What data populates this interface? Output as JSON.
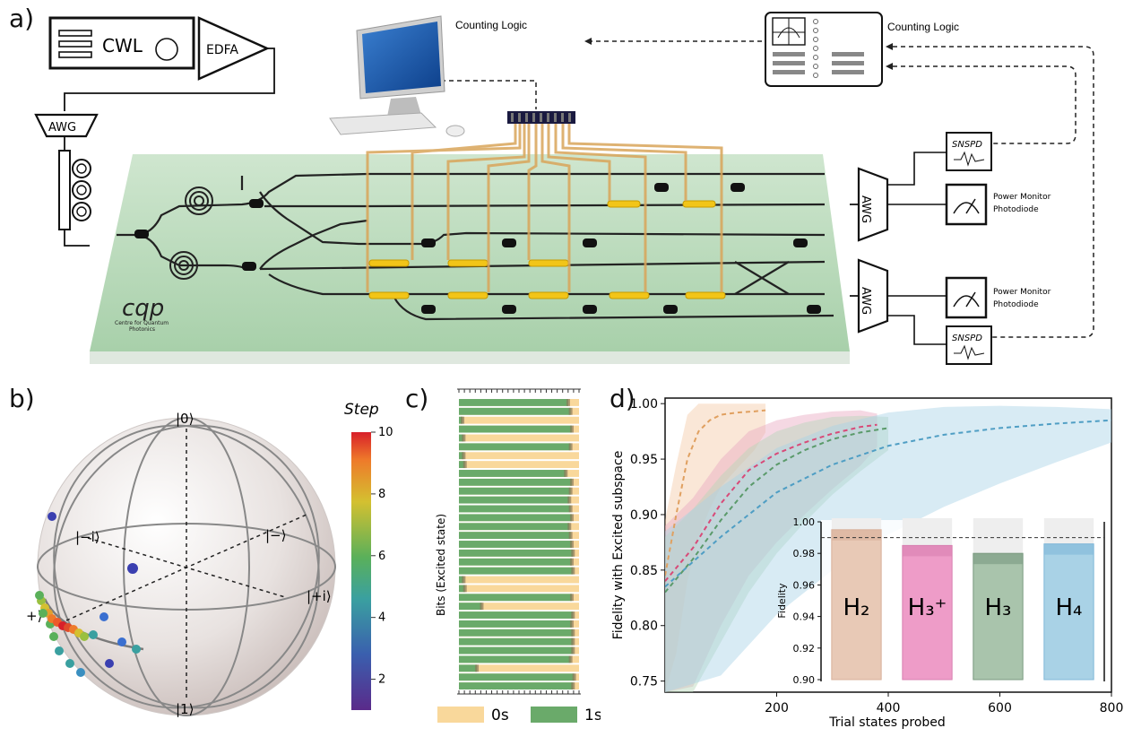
{
  "panel_labels": {
    "a": "a)",
    "b": "b)",
    "c": "c)",
    "d": "d)"
  },
  "setup": {
    "laser": "CWL",
    "amplifier": "EDFA",
    "awg_left": "AWG",
    "awg_right_1": "AWG",
    "awg_right_2": "AWG",
    "counting_logic_1": "Counting Logic",
    "counting_logic_2": "Counting Logic",
    "detector_1": "SNSPD",
    "detector_2": "SNSPD",
    "monitor_1_line1": "Power Monitor",
    "monitor_1_line2": "Photodiode",
    "monitor_2_line1": "Power Monitor",
    "monitor_2_line2": "Photodiode",
    "logo": "cqp",
    "logo_sub1": "Centre for Quantum",
    "logo_sub2": "Photonics"
  },
  "bloch": {
    "labels": {
      "zero": "|0⟩",
      "one": "|1⟩",
      "plus": "|+⟩",
      "minus": "|−⟩",
      "plus_i": "|+i⟩",
      "minus_i": "|−i⟩"
    },
    "colorbar": {
      "title": "Step",
      "ticks": [
        2,
        4,
        6,
        8,
        10
      ],
      "range": [
        1,
        10
      ]
    }
  },
  "bits_chart": {
    "ylabel": "Bits (Excited state)",
    "legend": [
      {
        "name": "0s",
        "color": "#f9d89b"
      },
      {
        "name": "1s",
        "color": "#6aaa6a"
      }
    ],
    "rows_ones_fraction": [
      0.91,
      0.93,
      0.03,
      0.94,
      0.04,
      0.93,
      0.04,
      0.05,
      0.89,
      0.94,
      0.93,
      0.92,
      0.93,
      0.94,
      0.92,
      0.93,
      0.94,
      0.95,
      0.94,
      0.95,
      0.04,
      0.05,
      0.94,
      0.19,
      0.95,
      0.94,
      0.95,
      0.95,
      0.95,
      0.93,
      0.15,
      0.96,
      0.95
    ]
  },
  "chart_data": {
    "type": "line",
    "xlabel": "Trial states probed",
    "ylabel": "Fidelity with Excited subspace",
    "xlim": [
      0,
      800
    ],
    "ylim": [
      0.74,
      1.005
    ],
    "xticks": [
      200,
      400,
      600,
      800
    ],
    "yticks": [
      0.75,
      0.8,
      0.85,
      0.9,
      0.95,
      1.0
    ],
    "series": [
      {
        "color": "#e0a060",
        "band_color": "#f4c9a6",
        "x": [
          0,
          20,
          40,
          60,
          80,
          100,
          130,
          160,
          180
        ],
        "y": [
          0.845,
          0.9,
          0.95,
          0.975,
          0.985,
          0.99,
          0.992,
          0.993,
          0.994
        ]
      },
      {
        "color": "#d84a78",
        "band_color": "#e8a8c0",
        "x": [
          0,
          50,
          100,
          150,
          200,
          250,
          300,
          350,
          380
        ],
        "y": [
          0.84,
          0.87,
          0.91,
          0.94,
          0.955,
          0.965,
          0.973,
          0.979,
          0.981
        ]
      },
      {
        "color": "#5a9a6a",
        "band_color": "#b6d6b8",
        "x": [
          0,
          50,
          100,
          150,
          200,
          250,
          300,
          350,
          400
        ],
        "y": [
          0.83,
          0.86,
          0.895,
          0.925,
          0.945,
          0.958,
          0.968,
          0.974,
          0.978
        ]
      },
      {
        "color": "#4f9ec4",
        "band_color": "#a9d2e6",
        "x": [
          0,
          100,
          200,
          300,
          400,
          500,
          600,
          700,
          800
        ],
        "y": [
          0.835,
          0.88,
          0.92,
          0.945,
          0.962,
          0.972,
          0.978,
          0.982,
          0.985
        ]
      }
    ],
    "inset": {
      "type": "bar",
      "ylabel": "Fidelity",
      "ylim": [
        0.9,
        1.0
      ],
      "yticks": [
        0.9,
        0.92,
        0.94,
        0.96,
        0.98,
        1.0
      ],
      "reference_line": 0.99,
      "categories": [
        "H₂",
        "H₃⁺",
        "H₃",
        "H₄"
      ],
      "values": [
        0.995,
        0.985,
        0.98,
        0.986
      ],
      "colors": [
        "#e8c9b6",
        "#ee9cc8",
        "#a9c4ac",
        "#a9d2e6"
      ],
      "edge_colors": [
        "#d8b09a",
        "#d880b0",
        "#7a9a80",
        "#80b8d8"
      ]
    }
  }
}
